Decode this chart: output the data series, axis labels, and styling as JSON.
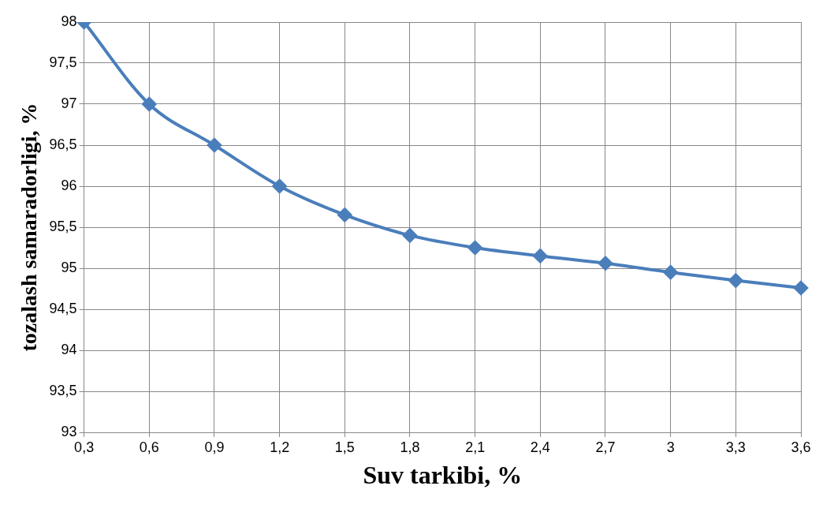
{
  "chart_data": {
    "type": "line",
    "xlabel": "Suv tarkibi, %",
    "ylabel": "tozalash samaradorligi, %",
    "categories": [
      "0,3",
      "0,6",
      "0,9",
      "1,2",
      "1,5",
      "1,8",
      "2,1",
      "2,4",
      "2,7",
      "3",
      "3,3",
      "3,6"
    ],
    "series": [
      {
        "color": "#4a7ebb",
        "values": [
          98,
          97,
          96.5,
          96,
          95.65,
          95.4,
          95.25,
          95.15,
          95.06,
          94.95,
          94.85,
          94.76
        ]
      }
    ],
    "ylim": [
      93,
      98
    ],
    "yticks": [
      93,
      {
        "value": 93.5,
        "label": "93,5"
      },
      94,
      {
        "value": 94.5,
        "label": "94,5"
      },
      95,
      {
        "value": 95.5,
        "label": "95,5"
      },
      96,
      {
        "value": 96.5,
        "label": "96,5"
      },
      97,
      {
        "value": 97.5,
        "label": "97,5"
      },
      98
    ],
    "grid": true,
    "legend": false,
    "marker": "diamond",
    "line_style": "solid"
  }
}
